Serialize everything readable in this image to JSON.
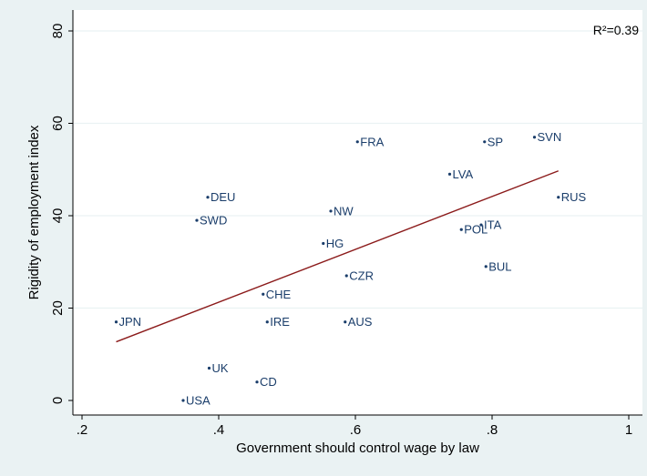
{
  "chart_data": {
    "type": "scatter",
    "xlabel": "Government should control wage by law",
    "ylabel": "Rigidity of employment index",
    "xlim": [
      0.2,
      1.0
    ],
    "ylim": [
      0,
      80
    ],
    "xticks": [
      0.2,
      0.4,
      0.6,
      0.8,
      1.0
    ],
    "xtick_labels": [
      ".2",
      ".4",
      ".6",
      ".8",
      "1"
    ],
    "yticks": [
      0,
      20,
      40,
      60,
      80
    ],
    "ytick_labels": [
      "0",
      "20",
      "40",
      "60",
      "80"
    ],
    "annotation": "R²=0.39",
    "grid": "horizontal",
    "points": [
      {
        "label": "JPN",
        "x": 0.25,
        "y": 17
      },
      {
        "label": "USA",
        "x": 0.348,
        "y": 0
      },
      {
        "label": "SWD",
        "x": 0.368,
        "y": 39
      },
      {
        "label": "DEU",
        "x": 0.384,
        "y": 44
      },
      {
        "label": "UK",
        "x": 0.386,
        "y": 7
      },
      {
        "label": "CD",
        "x": 0.456,
        "y": 4
      },
      {
        "label": "CHE",
        "x": 0.465,
        "y": 23
      },
      {
        "label": "IRE",
        "x": 0.471,
        "y": 17
      },
      {
        "label": "HG",
        "x": 0.553,
        "y": 34
      },
      {
        "label": "NW",
        "x": 0.564,
        "y": 41
      },
      {
        "label": "AUS",
        "x": 0.585,
        "y": 17
      },
      {
        "label": "CZR",
        "x": 0.587,
        "y": 27
      },
      {
        "label": "FRA",
        "x": 0.603,
        "y": 56
      },
      {
        "label": "LVA",
        "x": 0.738,
        "y": 49
      },
      {
        "label": "POL",
        "x": 0.755,
        "y": 37
      },
      {
        "label": "ITA",
        "x": 0.784,
        "y": 38
      },
      {
        "label": "SP",
        "x": 0.789,
        "y": 56
      },
      {
        "label": "BUL",
        "x": 0.791,
        "y": 29
      },
      {
        "label": "SVN",
        "x": 0.862,
        "y": 57
      },
      {
        "label": "RUS",
        "x": 0.897,
        "y": 44
      }
    ],
    "fit_line": {
      "x": [
        0.25,
        0.897
      ],
      "y": [
        12.7,
        49.7
      ],
      "color": "#8b1a1a"
    },
    "colors": {
      "background": "#eaf2f3",
      "plot_area": "#ffffff",
      "marker": "#1a3d6a",
      "label": "#1a3d6a",
      "grid": "#eaf2f3"
    }
  }
}
